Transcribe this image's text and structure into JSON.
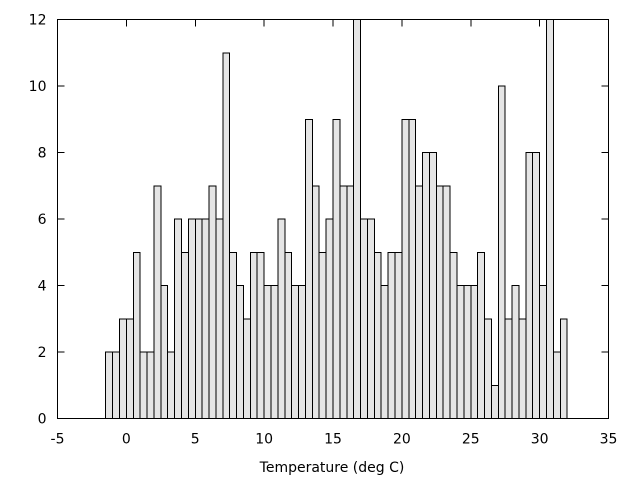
{
  "chart_data": {
    "type": "bar",
    "title": "",
    "xlabel": "Temperature (deg C)",
    "ylabel": "",
    "xlim": [
      -5,
      35
    ],
    "ylim": [
      0,
      12
    ],
    "xticks": [
      -5,
      0,
      5,
      10,
      15,
      20,
      25,
      30,
      35
    ],
    "yticks": [
      0,
      2,
      4,
      6,
      8,
      10,
      12
    ],
    "grid": false,
    "legend": "none",
    "bin_width": 0.5,
    "bar_color": "#e5e5e5",
    "edge_color": "#000000",
    "x": [
      -1.25,
      -0.75,
      -0.25,
      0.25,
      0.75,
      1.25,
      1.75,
      2.25,
      2.75,
      3.25,
      3.75,
      4.25,
      4.75,
      5.25,
      5.75,
      6.25,
      6.75,
      7.25,
      7.75,
      8.25,
      8.75,
      9.25,
      9.75,
      10.25,
      10.75,
      11.25,
      11.75,
      12.25,
      12.75,
      13.25,
      13.75,
      14.25,
      14.75,
      15.25,
      15.75,
      16.25,
      16.75,
      17.25,
      17.75,
      18.25,
      18.75,
      19.25,
      19.75,
      20.25,
      20.75,
      21.25,
      21.75,
      22.25,
      22.75,
      23.25,
      23.75,
      24.25,
      24.75,
      25.25,
      25.75,
      26.25,
      26.75,
      27.25,
      27.75,
      28.25,
      28.75,
      29.25,
      29.75,
      30.25,
      30.75,
      31.25,
      31.75
    ],
    "values": [
      2,
      2,
      3,
      3,
      5,
      2,
      2,
      7,
      4,
      2,
      6,
      5,
      6,
      6,
      6,
      7,
      6,
      11,
      5,
      4,
      3,
      5,
      5,
      4,
      4,
      6,
      5,
      4,
      4,
      9,
      7,
      5,
      6,
      9,
      7,
      7,
      12,
      6,
      6,
      5,
      4,
      5,
      5,
      9,
      9,
      7,
      8,
      8,
      7,
      7,
      5,
      4,
      4,
      4,
      5,
      3,
      1,
      10,
      3,
      4,
      3,
      8,
      8,
      4,
      12,
      2,
      3
    ]
  }
}
